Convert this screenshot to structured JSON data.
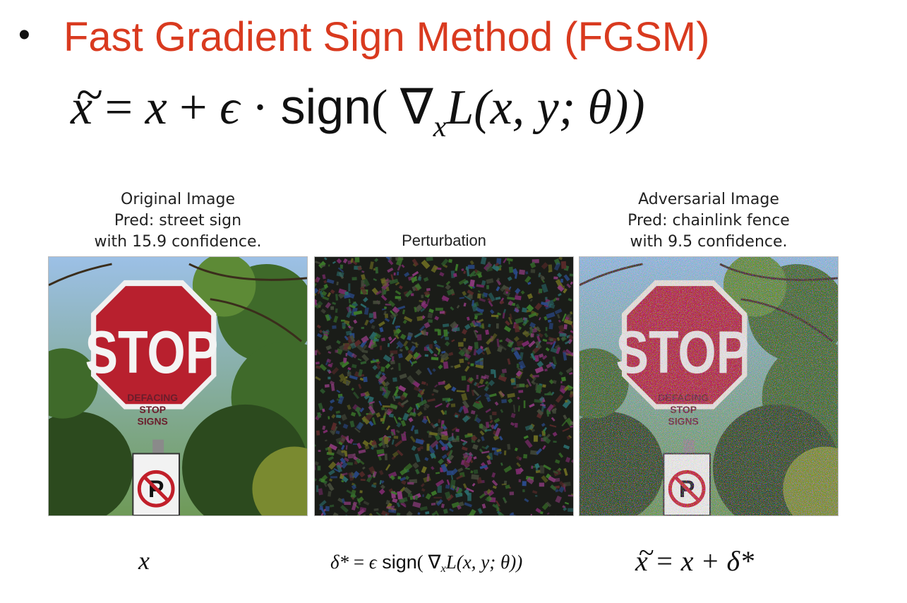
{
  "slide": {
    "bullet": "•",
    "title": "Fast Gradient Sign Method (FGSM)",
    "formula": {
      "tilde": "~",
      "lhs": "x",
      "eq": " = ",
      "x": "x",
      "plus": " + ",
      "eps": "ϵ",
      "dot": " · ",
      "sign": "sign",
      "open": "( ",
      "nabla": "∇",
      "sub": "x",
      "L": "L",
      "args": "(x, y; θ))"
    }
  },
  "panels": [
    {
      "caption": [
        "Original Image",
        "Pred: street sign",
        "with 15.9 confidence."
      ],
      "image": "stop-sign-photo",
      "stop_text": "STOP",
      "graffiti": [
        "DEFACING",
        "STOP",
        "SIGNS"
      ],
      "plate_letter": "P"
    },
    {
      "caption": [
        "Perturbation"
      ],
      "image": "noise-pattern"
    },
    {
      "caption": [
        "Adversarial Image",
        "Pred: chainlink fence",
        "with 9.5 confidence."
      ],
      "image": "stop-sign-adversarial",
      "stop_text": "STOP",
      "graffiti": [
        "DEFACING",
        "STOP",
        "SIGNS"
      ],
      "plate_letter": "P"
    }
  ],
  "bottom_labels": {
    "left": "x",
    "middle": {
      "delta": "δ*",
      "eq": " = ",
      "eps": "ϵ",
      "sign": " sign",
      "open": "( ",
      "nabla": "∇",
      "sub": "x",
      "L": "L",
      "args": "(x, y; θ))"
    },
    "right": {
      "tilde": "~",
      "x": "x",
      "rest": " = x + δ*"
    }
  },
  "colors": {
    "title": "#d93a1f",
    "stop_red": "#b8202e",
    "foliage": "#3f6a2a",
    "sky": "#8fb6e0"
  }
}
